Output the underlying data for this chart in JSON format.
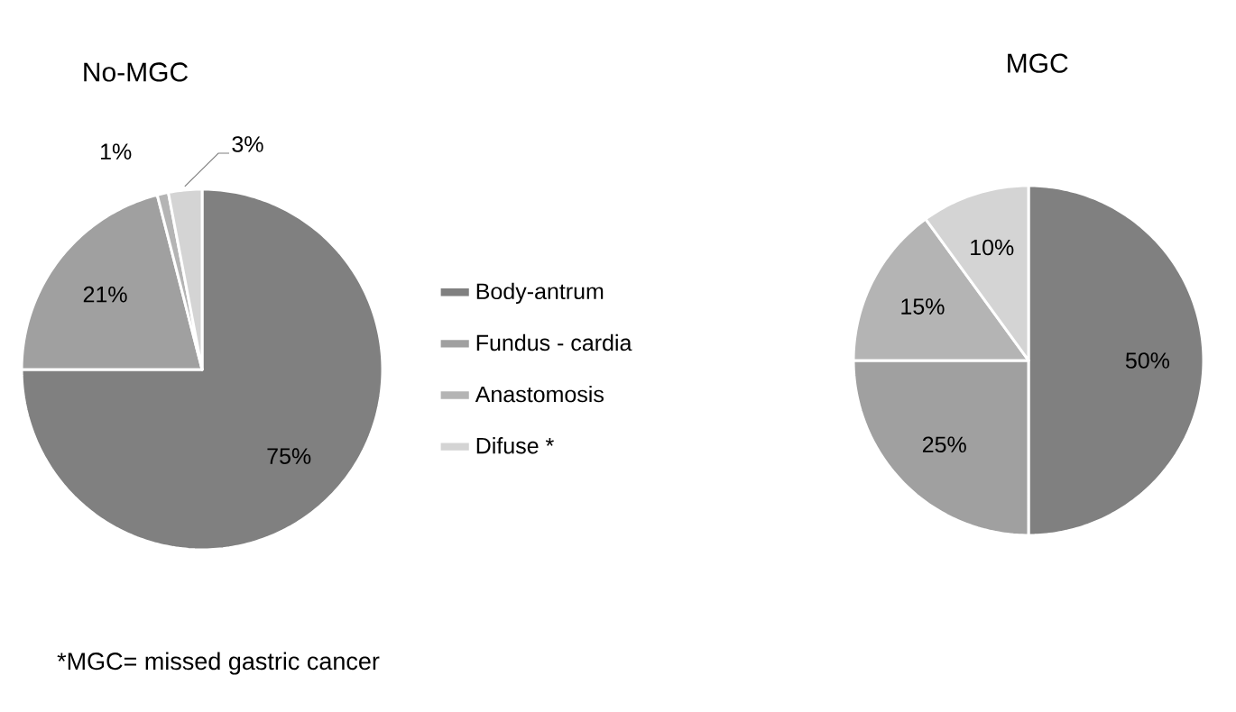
{
  "chart_data": [
    {
      "type": "pie",
      "title": "No-MGC",
      "categories": [
        "Body-antrum",
        "Fundus - cardia",
        "Anastomosis",
        "Difuse *"
      ],
      "values": [
        75,
        21,
        1,
        3
      ],
      "colors": [
        "#808080",
        "#a0a0a0",
        "#b4b4b4",
        "#d4d4d4"
      ],
      "value_labels": [
        "75%",
        "21%",
        "1%",
        "3%"
      ],
      "legend": "right",
      "annotations": [
        "*MGC= missed gastric cancer"
      ]
    },
    {
      "type": "pie",
      "title": "MGC",
      "values": [
        50,
        25,
        15,
        10
      ],
      "colors": [
        "#808080",
        "#a0a0a0",
        "#b4b4b4",
        "#d4d4d4"
      ],
      "value_labels": [
        "50%",
        "25%",
        "15%",
        "10%"
      ],
      "legend": false
    }
  ]
}
